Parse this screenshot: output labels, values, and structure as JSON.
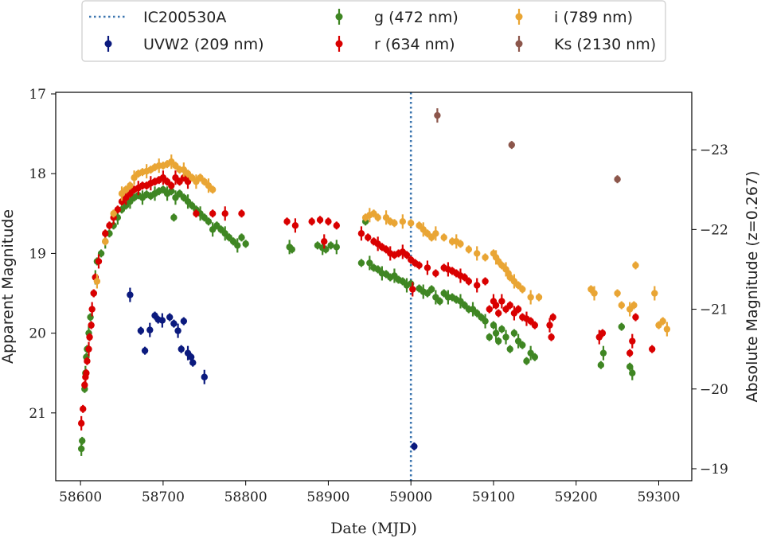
{
  "chart_data": {
    "type": "scatter",
    "xlabel": "Date (MJD)",
    "ylabel": "Apparent Magnitude",
    "ylabel_right": "Absolute Magnitude (z=0.267)",
    "xlim": [
      58570,
      59340
    ],
    "ylim": [
      21.85,
      16.98
    ],
    "ylim_right": [
      -18.85,
      -23.72
    ],
    "x_ticks": [
      "58600",
      "58700",
      "58800",
      "58900",
      "59000",
      "59100",
      "59200",
      "59300"
    ],
    "y_ticks": [
      "17",
      "18",
      "19",
      "20",
      "21"
    ],
    "y_ticks_right": [
      "−23",
      "−22",
      "−21",
      "−20",
      "−19"
    ],
    "grid": false,
    "legend_position": "top-outside",
    "event": {
      "name": "IC200530A",
      "x": 59000,
      "color": "#3b75af"
    },
    "series": [
      {
        "name": "UVW2 (209 nm)",
        "color": "#0b1a7e",
        "points": [
          [
            58660,
            19.52
          ],
          [
            58673,
            19.97
          ],
          [
            58678,
            20.22
          ],
          [
            58684,
            19.96
          ],
          [
            58690,
            19.78
          ],
          [
            58694,
            19.83
          ],
          [
            58699,
            19.84
          ],
          [
            58708,
            19.8
          ],
          [
            58713,
            19.88
          ],
          [
            58718,
            19.97
          ],
          [
            58722,
            20.2
          ],
          [
            58725,
            19.85
          ],
          [
            58730,
            20.25
          ],
          [
            58734,
            20.3
          ],
          [
            58736,
            20.37
          ],
          [
            58750,
            20.55
          ],
          [
            59004,
            21.42
          ]
        ]
      },
      {
        "name": "g (472 nm)",
        "color": "#3f8623",
        "points": [
          [
            58601,
            21.45
          ],
          [
            58602,
            21.35
          ],
          [
            58605,
            20.7
          ],
          [
            58606,
            20.5
          ],
          [
            58607,
            20.3
          ],
          [
            58608,
            20.2
          ],
          [
            58610,
            20.0
          ],
          [
            58612,
            19.8
          ],
          [
            58616,
            19.5
          ],
          [
            58618,
            19.3
          ],
          [
            58620,
            19.1
          ],
          [
            58625,
            19.0
          ],
          [
            58630,
            18.85
          ],
          [
            58635,
            18.75
          ],
          [
            58640,
            18.65
          ],
          [
            58645,
            18.55
          ],
          [
            58650,
            18.45
          ],
          [
            58655,
            18.4
          ],
          [
            58660,
            18.35
          ],
          [
            58665,
            18.3
          ],
          [
            58670,
            18.27
          ],
          [
            58675,
            18.3
          ],
          [
            58680,
            18.26
          ],
          [
            58685,
            18.28
          ],
          [
            58690,
            18.25
          ],
          [
            58695,
            18.22
          ],
          [
            58700,
            18.2
          ],
          [
            58705,
            18.25
          ],
          [
            58710,
            18.22
          ],
          [
            58713,
            18.55
          ],
          [
            58715,
            18.3
          ],
          [
            58720,
            18.25
          ],
          [
            58725,
            18.3
          ],
          [
            58730,
            18.35
          ],
          [
            58735,
            18.4
          ],
          [
            58740,
            18.45
          ],
          [
            58745,
            18.5
          ],
          [
            58750,
            18.55
          ],
          [
            58755,
            18.6
          ],
          [
            58760,
            18.7
          ],
          [
            58765,
            18.65
          ],
          [
            58770,
            18.7
          ],
          [
            58775,
            18.75
          ],
          [
            58780,
            18.8
          ],
          [
            58785,
            18.85
          ],
          [
            58790,
            18.9
          ],
          [
            58795,
            18.8
          ],
          [
            58800,
            18.88
          ],
          [
            58853,
            18.92
          ],
          [
            58856,
            18.95
          ],
          [
            58887,
            18.9
          ],
          [
            58893,
            18.93
          ],
          [
            58897,
            18.95
          ],
          [
            58903,
            18.9
          ],
          [
            58910,
            18.92
          ],
          [
            58940,
            19.12
          ],
          [
            58945,
            18.6
          ],
          [
            58950,
            19.12
          ],
          [
            58955,
            19.18
          ],
          [
            58960,
            19.2
          ],
          [
            58965,
            19.25
          ],
          [
            58970,
            19.26
          ],
          [
            58975,
            19.3
          ],
          [
            58980,
            19.28
          ],
          [
            58985,
            19.33
          ],
          [
            58990,
            19.35
          ],
          [
            58995,
            19.4
          ],
          [
            59000,
            19.38
          ],
          [
            59010,
            19.44
          ],
          [
            59015,
            19.48
          ],
          [
            59020,
            19.5
          ],
          [
            59025,
            19.45
          ],
          [
            59030,
            19.55
          ],
          [
            59035,
            19.6
          ],
          [
            59040,
            19.5
          ],
          [
            59045,
            19.55
          ],
          [
            59050,
            19.55
          ],
          [
            59055,
            19.58
          ],
          [
            59060,
            19.6
          ],
          [
            59065,
            19.65
          ],
          [
            59070,
            19.7
          ],
          [
            59075,
            19.7
          ],
          [
            59080,
            19.75
          ],
          [
            59085,
            19.8
          ],
          [
            59090,
            19.85
          ],
          [
            59095,
            20.05
          ],
          [
            59100,
            19.9
          ],
          [
            59103,
            20.0
          ],
          [
            59106,
            20.1
          ],
          [
            59110,
            19.95
          ],
          [
            59115,
            20.05
          ],
          [
            59120,
            20.2
          ],
          [
            59125,
            20.0
          ],
          [
            59130,
            20.1
          ],
          [
            59135,
            20.15
          ],
          [
            59140,
            20.35
          ],
          [
            59145,
            20.25
          ],
          [
            59150,
            20.3
          ],
          [
            59230,
            20.4
          ],
          [
            59233,
            20.25
          ],
          [
            59255,
            19.92
          ],
          [
            59265,
            20.42
          ],
          [
            59268,
            20.5
          ]
        ]
      },
      {
        "name": "r (634 nm)",
        "color": "#d90000",
        "points": [
          [
            58601,
            21.13
          ],
          [
            58603,
            20.95
          ],
          [
            58605,
            20.65
          ],
          [
            58606,
            20.55
          ],
          [
            58607,
            20.5
          ],
          [
            58608,
            20.35
          ],
          [
            58610,
            20.2
          ],
          [
            58611,
            20.05
          ],
          [
            58613,
            19.9
          ],
          [
            58614,
            19.7
          ],
          [
            58616,
            19.5
          ],
          [
            58618,
            19.3
          ],
          [
            58622,
            19.1
          ],
          [
            58630,
            18.75
          ],
          [
            58635,
            18.65
          ],
          [
            58640,
            18.55
          ],
          [
            58645,
            18.45
          ],
          [
            58650,
            18.35
          ],
          [
            58655,
            18.3
          ],
          [
            58660,
            18.25
          ],
          [
            58665,
            18.2
          ],
          [
            58670,
            18.18
          ],
          [
            58675,
            18.15
          ],
          [
            58680,
            18.15
          ],
          [
            58685,
            18.12
          ],
          [
            58690,
            18.1
          ],
          [
            58695,
            18.08
          ],
          [
            58700,
            18.05
          ],
          [
            58705,
            18.1
          ],
          [
            58710,
            18.15
          ],
          [
            58715,
            18.05
          ],
          [
            58720,
            18.1
          ],
          [
            58725,
            18.05
          ],
          [
            58730,
            18.1
          ],
          [
            58740,
            18.5
          ],
          [
            58760,
            18.5
          ],
          [
            58775,
            18.5
          ],
          [
            58795,
            18.5
          ],
          [
            58850,
            18.6
          ],
          [
            58860,
            18.65
          ],
          [
            58880,
            18.6
          ],
          [
            58890,
            18.58
          ],
          [
            58895,
            18.85
          ],
          [
            58900,
            18.6
          ],
          [
            58910,
            18.65
          ],
          [
            58940,
            18.75
          ],
          [
            58948,
            18.8
          ],
          [
            58955,
            18.85
          ],
          [
            58960,
            18.88
          ],
          [
            58965,
            18.92
          ],
          [
            58970,
            18.95
          ],
          [
            58975,
            19.0
          ],
          [
            58980,
            19.02
          ],
          [
            58985,
            19.0
          ],
          [
            58990,
            18.98
          ],
          [
            58995,
            19.02
          ],
          [
            59000,
            19.08
          ],
          [
            59002,
            19.45
          ],
          [
            59005,
            19.12
          ],
          [
            59010,
            19.15
          ],
          [
            59020,
            19.18
          ],
          [
            59030,
            19.25
          ],
          [
            59040,
            19.18
          ],
          [
            59045,
            19.2
          ],
          [
            59050,
            19.22
          ],
          [
            59055,
            19.25
          ],
          [
            59060,
            19.28
          ],
          [
            59065,
            19.3
          ],
          [
            59070,
            19.35
          ],
          [
            59080,
            19.4
          ],
          [
            59090,
            19.35
          ],
          [
            59095,
            19.7
          ],
          [
            59100,
            19.6
          ],
          [
            59103,
            19.65
          ],
          [
            59106,
            19.75
          ],
          [
            59110,
            19.6
          ],
          [
            59115,
            19.7
          ],
          [
            59120,
            19.65
          ],
          [
            59125,
            19.75
          ],
          [
            59130,
            19.7
          ],
          [
            59135,
            19.8
          ],
          [
            59140,
            19.82
          ],
          [
            59145,
            19.85
          ],
          [
            59150,
            19.9
          ],
          [
            59168,
            19.9
          ],
          [
            59170,
            20.05
          ],
          [
            59172,
            19.8
          ],
          [
            59228,
            20.05
          ],
          [
            59232,
            20.0
          ],
          [
            59265,
            20.25
          ],
          [
            59268,
            20.1
          ],
          [
            59272,
            19.8
          ],
          [
            59292,
            20.2
          ]
        ]
      },
      {
        "name": "i (789 nm)",
        "color": "#e9a534",
        "points": [
          [
            58620,
            19.35
          ],
          [
            58630,
            18.85
          ],
          [
            58640,
            18.5
          ],
          [
            58650,
            18.25
          ],
          [
            58655,
            18.2
          ],
          [
            58660,
            18.15
          ],
          [
            58665,
            18.05
          ],
          [
            58670,
            18.0
          ],
          [
            58675,
            17.98
          ],
          [
            58680,
            17.97
          ],
          [
            58685,
            17.95
          ],
          [
            58690,
            17.92
          ],
          [
            58695,
            17.9
          ],
          [
            58700,
            17.9
          ],
          [
            58705,
            17.88
          ],
          [
            58710,
            17.85
          ],
          [
            58715,
            17.9
          ],
          [
            58720,
            17.95
          ],
          [
            58725,
            17.95
          ],
          [
            58730,
            18.0
          ],
          [
            58735,
            18.05
          ],
          [
            58740,
            18.1
          ],
          [
            58745,
            18.05
          ],
          [
            58750,
            18.1
          ],
          [
            58755,
            18.15
          ],
          [
            58760,
            18.2
          ],
          [
            58945,
            18.55
          ],
          [
            58950,
            18.52
          ],
          [
            58955,
            18.5
          ],
          [
            58960,
            18.55
          ],
          [
            58970,
            18.55
          ],
          [
            58975,
            18.6
          ],
          [
            58980,
            18.62
          ],
          [
            58990,
            18.6
          ],
          [
            59000,
            18.62
          ],
          [
            59010,
            18.65
          ],
          [
            59015,
            18.7
          ],
          [
            59020,
            18.75
          ],
          [
            59025,
            18.8
          ],
          [
            59030,
            18.75
          ],
          [
            59040,
            18.8
          ],
          [
            59050,
            18.85
          ],
          [
            59055,
            18.85
          ],
          [
            59060,
            18.88
          ],
          [
            59070,
            18.95
          ],
          [
            59080,
            19.0
          ],
          [
            59090,
            19.05
          ],
          [
            59100,
            19.0
          ],
          [
            59103,
            19.05
          ],
          [
            59106,
            19.1
          ],
          [
            59110,
            19.15
          ],
          [
            59115,
            19.2
          ],
          [
            59118,
            19.25
          ],
          [
            59120,
            19.3
          ],
          [
            59125,
            19.35
          ],
          [
            59130,
            19.4
          ],
          [
            59135,
            19.45
          ],
          [
            59145,
            19.55
          ],
          [
            59155,
            19.55
          ],
          [
            59218,
            19.45
          ],
          [
            59222,
            19.5
          ],
          [
            59250,
            19.5
          ],
          [
            59255,
            19.65
          ],
          [
            59265,
            19.7
          ],
          [
            59270,
            19.65
          ],
          [
            59272,
            19.15
          ],
          [
            59295,
            19.5
          ],
          [
            59300,
            19.9
          ],
          [
            59305,
            19.85
          ],
          [
            59310,
            19.95
          ]
        ]
      },
      {
        "name": "Ks (2130 nm)",
        "color": "#8c564b",
        "points": [
          [
            59032,
            17.27
          ],
          [
            59122,
            17.64
          ],
          [
            59250,
            18.07
          ]
        ]
      }
    ]
  }
}
